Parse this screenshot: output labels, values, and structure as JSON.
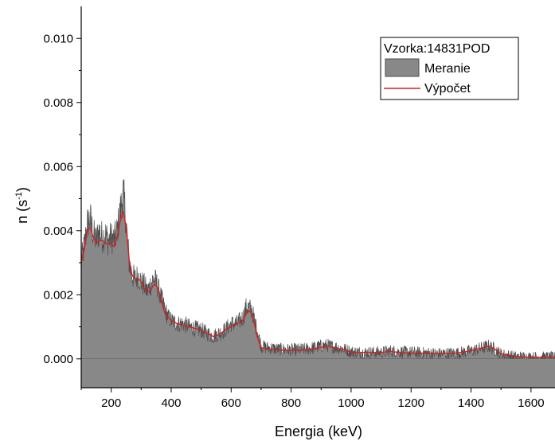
{
  "chart_data": {
    "type": "area",
    "xlabel": "Energia (keV)",
    "ylabel": "n (s",
    "ylabel_superscript": "-1",
    "ylabel_suffix": ")",
    "xlim": [
      100,
      1680
    ],
    "ylim": [
      -0.0009,
      0.011
    ],
    "x_ticks": [
      200,
      400,
      600,
      800,
      1000,
      1200,
      1400,
      1600
    ],
    "x_tick_labels": [
      "200",
      "400",
      "600",
      "800",
      "1000",
      "1200",
      "1400",
      "1600"
    ],
    "y_ticks": [
      0.0,
      0.002,
      0.004,
      0.006,
      0.008,
      0.01
    ],
    "y_tick_labels": [
      "0.000",
      "0.002",
      "0.004",
      "0.006",
      "0.008",
      "0.010"
    ],
    "legend": {
      "title": "Vzorka:14831POD",
      "position": "top-right",
      "entries": [
        "Meranie",
        "Výpočet"
      ]
    },
    "colors": {
      "measured_fill": "#888888",
      "measured_edge": "#4d4d4d",
      "calc": "#d42020"
    },
    "series": [
      {
        "name": "Meranie",
        "kind": "area",
        "x": [
          100,
          110,
          120,
          130,
          140,
          150,
          160,
          170,
          180,
          190,
          200,
          210,
          220,
          230,
          240,
          245,
          250,
          260,
          270,
          280,
          290,
          300,
          310,
          320,
          330,
          340,
          350,
          360,
          370,
          380,
          390,
          400,
          420,
          440,
          460,
          480,
          500,
          520,
          540,
          560,
          580,
          600,
          620,
          640,
          650,
          660,
          670,
          680,
          690,
          700,
          720,
          760,
          800,
          850,
          900,
          920,
          940,
          980,
          1000,
          1050,
          1100,
          1130,
          1160,
          1200,
          1250,
          1300,
          1350,
          1400,
          1440,
          1460,
          1480,
          1500,
          1550,
          1600,
          1650,
          1680
        ],
        "y": [
          0.003,
          0.0035,
          0.0042,
          0.0044,
          0.0039,
          0.0037,
          0.004,
          0.0038,
          0.0039,
          0.0037,
          0.0038,
          0.0037,
          0.004,
          0.0046,
          0.0052,
          0.0048,
          0.0042,
          0.003,
          0.0026,
          0.0025,
          0.0026,
          0.0024,
          0.0023,
          0.0021,
          0.0023,
          0.0025,
          0.0024,
          0.0021,
          0.0018,
          0.0015,
          0.0013,
          0.0012,
          0.0011,
          0.0011,
          0.001,
          0.00095,
          0.0009,
          0.0008,
          0.0007,
          0.0008,
          0.0009,
          0.0011,
          0.0011,
          0.0013,
          0.0016,
          0.0016,
          0.0015,
          0.0011,
          0.0008,
          0.0004,
          0.00035,
          0.0003,
          0.00028,
          0.0003,
          0.0004,
          0.00042,
          0.00038,
          0.0003,
          0.00022,
          0.0002,
          0.0002,
          0.00025,
          0.00022,
          0.0002,
          0.00018,
          0.00016,
          0.00018,
          0.00024,
          0.00035,
          0.0004,
          0.0003,
          0.00015,
          6e-05,
          5e-05,
          5e-05,
          4e-05
        ]
      },
      {
        "name": "Výpočet",
        "kind": "line",
        "x": [
          100,
          110,
          120,
          130,
          140,
          150,
          160,
          170,
          180,
          190,
          200,
          210,
          220,
          230,
          240,
          250,
          260,
          270,
          280,
          290,
          300,
          310,
          320,
          330,
          340,
          350,
          360,
          370,
          380,
          390,
          400,
          420,
          440,
          460,
          480,
          500,
          520,
          540,
          560,
          580,
          600,
          620,
          640,
          650,
          660,
          670,
          680,
          690,
          700,
          720,
          760,
          800,
          850,
          900,
          920,
          940,
          980,
          1000,
          1050,
          1100,
          1130,
          1160,
          1200,
          1250,
          1300,
          1350,
          1400,
          1440,
          1460,
          1480,
          1500,
          1550,
          1600,
          1650,
          1680
        ],
        "y": [
          0.003,
          0.0034,
          0.004,
          0.0041,
          0.0038,
          0.0036,
          0.0037,
          0.0037,
          0.0036,
          0.0036,
          0.0036,
          0.0035,
          0.0038,
          0.0043,
          0.0046,
          0.0041,
          0.0031,
          0.0026,
          0.0025,
          0.0025,
          0.0024,
          0.0022,
          0.0021,
          0.0021,
          0.0023,
          0.0023,
          0.0021,
          0.0017,
          0.0014,
          0.0013,
          0.0012,
          0.0011,
          0.00105,
          0.001,
          0.00095,
          0.0009,
          0.0008,
          0.0007,
          0.00075,
          0.0009,
          0.001,
          0.0011,
          0.0012,
          0.0014,
          0.0015,
          0.0014,
          0.001,
          0.0006,
          0.00035,
          0.0003,
          0.00028,
          0.00026,
          0.00028,
          0.00036,
          0.0004,
          0.00035,
          0.00028,
          0.0002,
          0.0002,
          0.0002,
          0.00023,
          0.0002,
          0.00018,
          0.00017,
          0.00016,
          0.00018,
          0.00025,
          0.00035,
          0.0004,
          0.0003,
          0.00015,
          7e-05,
          5e-05,
          5e-05,
          4e-05
        ]
      }
    ]
  }
}
